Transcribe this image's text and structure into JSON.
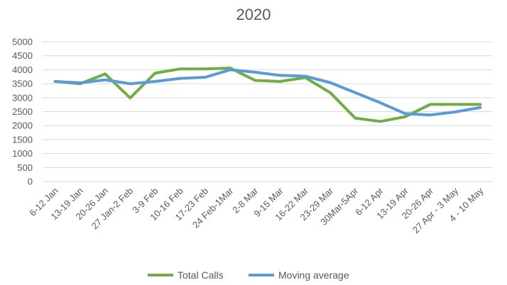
{
  "chart_data": {
    "type": "line",
    "title": "2020",
    "xlabel": "",
    "ylabel": "",
    "ylim": [
      0,
      5000
    ],
    "yticks": [
      0,
      500,
      1000,
      1500,
      2000,
      2500,
      3000,
      3500,
      4000,
      4500,
      5000
    ],
    "grid": true,
    "legend_position": "bottom",
    "categories": [
      "6-12 Jan",
      "13-19 Jan",
      "20-26 Jan",
      "27 Jan-2 Feb",
      "3-9 Feb",
      "10-16 Feb",
      "17-23 Feb",
      "24 Feb-1Mar",
      "2-8 Mar",
      "9-15 Mar",
      "16-22 Mar",
      "23-29 Mar",
      "30Mar-5Apr",
      "6-12 Apr",
      "13-19 Apr",
      "20-26 Apr",
      "27 Apr - 3 May",
      "4 - 10 May"
    ],
    "series": [
      {
        "name": "Total Calls",
        "color": "#70AD47",
        "values": [
          3580,
          3500,
          3850,
          2990,
          3880,
          4030,
          4030,
          4060,
          3620,
          3580,
          3720,
          3180,
          2270,
          2150,
          2320,
          2760,
          2760,
          2760
        ]
      },
      {
        "name": "Moving average",
        "color": "#5B9BD5",
        "values": [
          3580,
          3530,
          3640,
          3500,
          3580,
          3690,
          3730,
          4000,
          3910,
          3800,
          3770,
          3540,
          3180,
          2820,
          2430,
          2380,
          2490,
          2650
        ]
      }
    ]
  }
}
